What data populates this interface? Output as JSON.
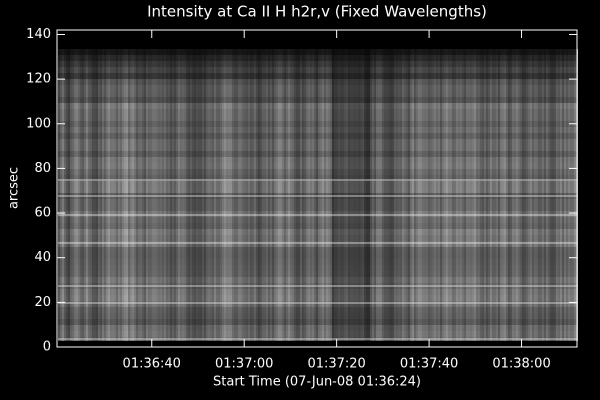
{
  "chart_data": {
    "type": "image",
    "title": "Intensity at Ca II H h2r,v (Fixed Wavelengths)",
    "x_label": "Start Time (07-Jun-08 01:36:24)",
    "y_label": "arcsec",
    "xlim": [
      -4.5,
      108
    ],
    "xticks": [
      {
        "value": 16,
        "label": "01:36:40"
      },
      {
        "value": 36,
        "label": "01:37:00"
      },
      {
        "value": 56,
        "label": "01:37:20"
      },
      {
        "value": 76,
        "label": "01:37:40"
      },
      {
        "value": 96,
        "label": "01:38:00"
      }
    ],
    "ylim": [
      0,
      142
    ],
    "yticks": [
      0,
      20,
      40,
      60,
      80,
      100,
      120,
      140
    ]
  }
}
